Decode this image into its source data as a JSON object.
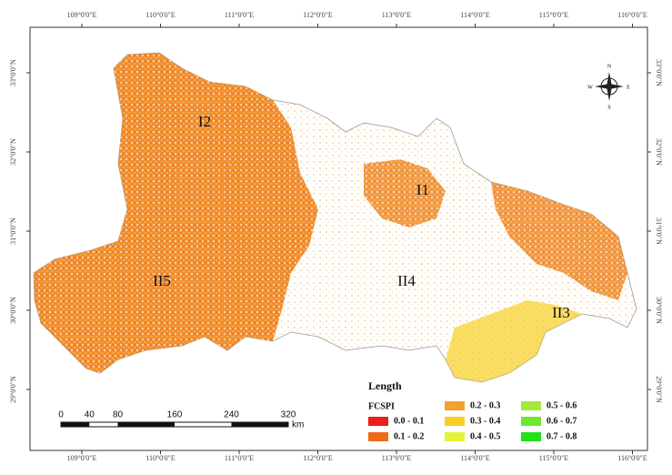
{
  "map": {
    "longitudes": [
      "109°0'0\"E",
      "110°0'0\"E",
      "111°0'0\"E",
      "112°0'0\"E",
      "113°0'0\"E",
      "114°0'0\"E",
      "115°0'0\"E",
      "116°0'0\"E"
    ],
    "latitudes": [
      "33°0'0\"N",
      "32°0'0\"N",
      "31°0'0\"N",
      "30°0'0\"N",
      "29°0'0\"N"
    ],
    "regions": [
      "I2",
      "I1",
      "II5",
      "II4",
      "II3"
    ],
    "compass": {
      "north": "N",
      "south": "S",
      "east": "E",
      "west": "W"
    },
    "scale_bar": {
      "ticks": [
        0,
        40,
        80,
        160,
        240,
        320
      ],
      "unit": "km"
    },
    "legend": {
      "title": "Length",
      "subtitle": "FCSPI",
      "items": [
        {
          "label": "0.0 - 0.1",
          "color": "#e8211b"
        },
        {
          "label": "0.1 - 0.2",
          "color": "#f06a1a"
        },
        {
          "label": "0.2 - 0.3",
          "color": "#f3a12f"
        },
        {
          "label": "0.3 - 0.4",
          "color": "#f6cf22"
        },
        {
          "label": "0.4 - 0.5",
          "color": "#e6f23a"
        },
        {
          "label": "0.5 - 0.6",
          "color": "#a6e83a"
        },
        {
          "label": "0.6 - 0.7",
          "color": "#6de82e"
        },
        {
          "label": "0.7 - 0.8",
          "color": "#22e01c"
        }
      ]
    }
  }
}
